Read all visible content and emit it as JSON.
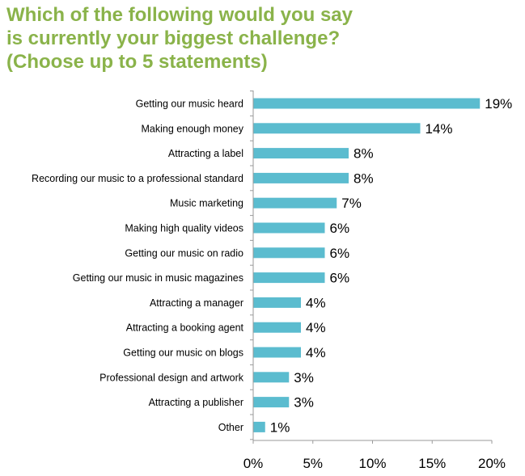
{
  "chart_data": {
    "type": "bar",
    "orientation": "horizontal",
    "title_lines": [
      "Which of the following would you say",
      "is currently your biggest challenge?",
      "(Choose up to 5 statements)"
    ],
    "categories": [
      "Getting our music heard",
      "Making enough money",
      "Attracting a label",
      "Recording our music to a professional standard",
      "Music marketing",
      "Making high quality videos",
      "Getting our music on radio",
      "Getting our music in music magazines",
      "Attracting a manager",
      "Attracting a booking agent",
      "Getting our music on blogs",
      "Professional design and artwork",
      "Attracting a publisher",
      "Other"
    ],
    "values": [
      19,
      14,
      8,
      8,
      7,
      6,
      6,
      6,
      4,
      4,
      4,
      3,
      3,
      1
    ],
    "value_labels": [
      "19%",
      "14%",
      "8%",
      "8%",
      "7%",
      "6%",
      "6%",
      "6%",
      "4%",
      "4%",
      "4%",
      "3%",
      "3%",
      "1%"
    ],
    "x_ticks": [
      0,
      5,
      10,
      15,
      20
    ],
    "x_tick_labels": [
      "0%",
      "5%",
      "10%",
      "15%",
      "20%"
    ],
    "xlim": [
      0,
      20
    ],
    "grid": false,
    "legend": "none",
    "colors": {
      "bar": "#5bbccf",
      "title": "#8ab34a",
      "axis": "#9a9a9a"
    }
  }
}
